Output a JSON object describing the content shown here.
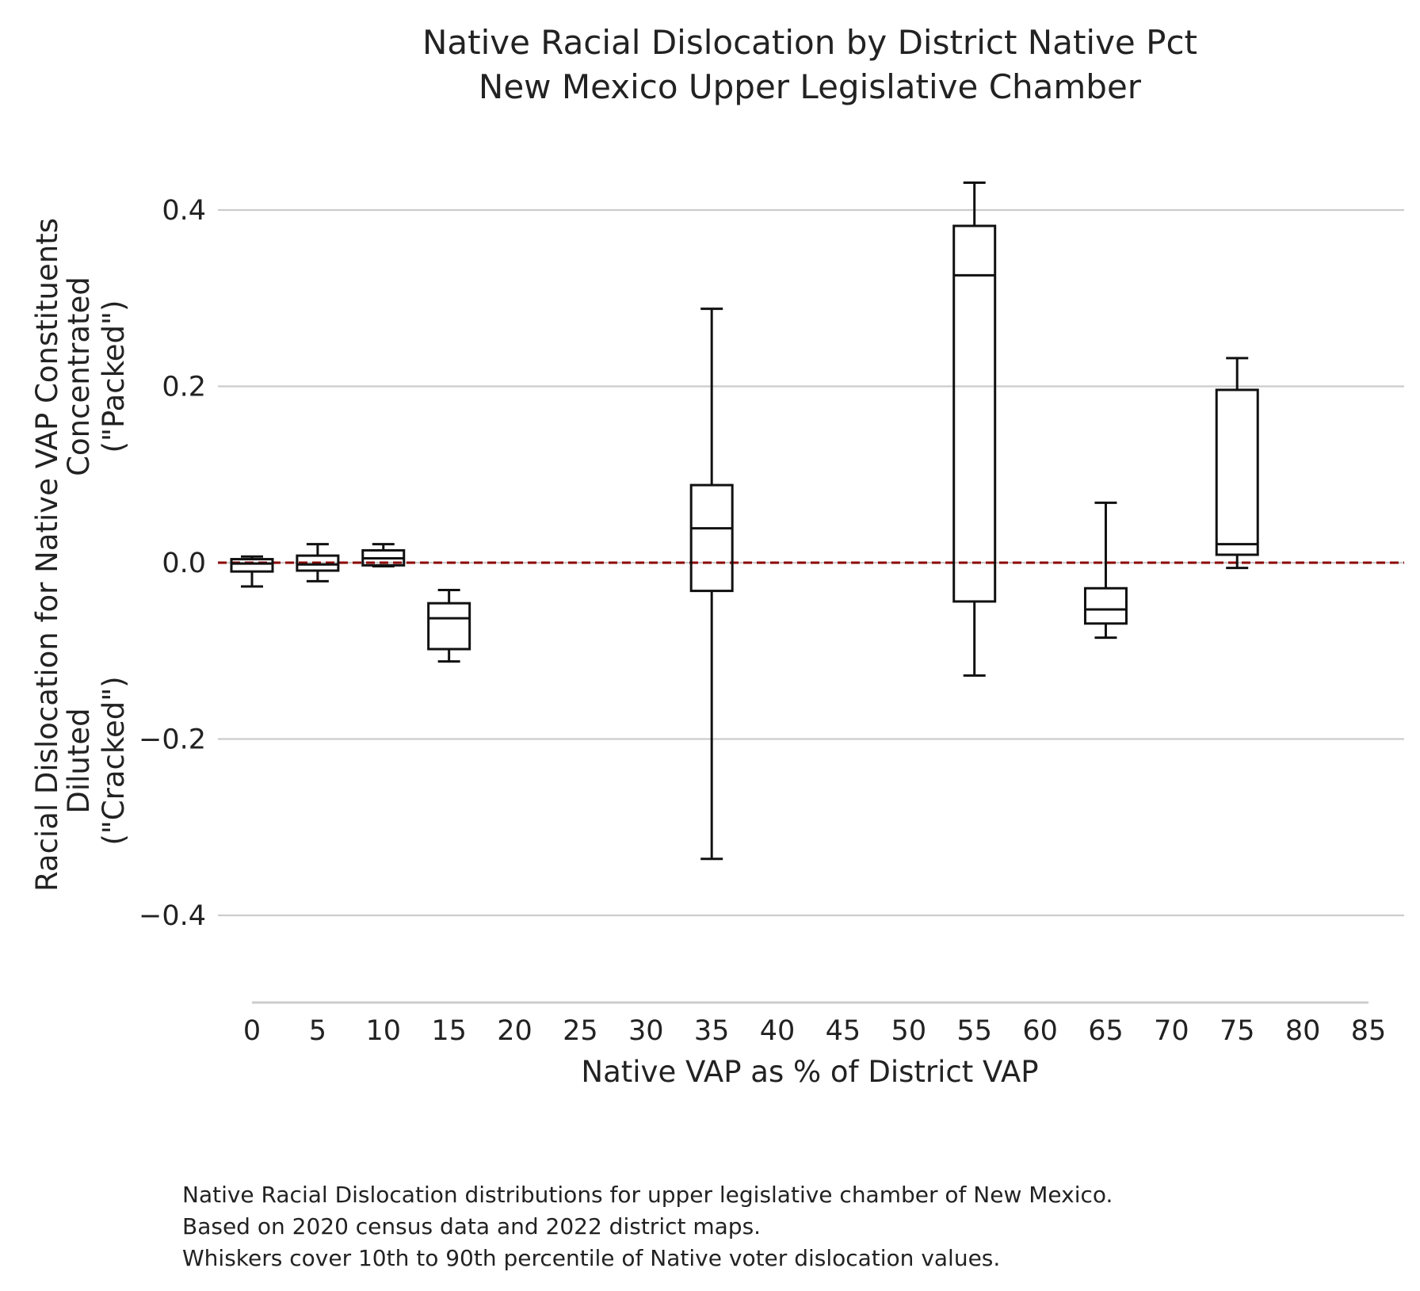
{
  "chart_data": {
    "type": "box",
    "title": [
      "Native Racial Dislocation by District Native Pct",
      "New Mexico Upper Legislative Chamber"
    ],
    "xlabel": "Native VAP as % of District VAP",
    "ylabel": [
      "Racial Dislocation for Native VAP Constituents",
      "Concentrated",
      "(\"Packed\")",
      "Diluted",
      "(\"Cracked\")"
    ],
    "x_ticks": [
      "0",
      "5",
      "10",
      "15",
      "20",
      "25",
      "30",
      "35",
      "40",
      "45",
      "50",
      "55",
      "60",
      "65",
      "70",
      "75",
      "80",
      "85"
    ],
    "y_ticks": [
      "0.4",
      "0.2",
      "0.0",
      "−0.2",
      "−0.4"
    ],
    "y_tick_values": [
      0.4,
      0.2,
      0.0,
      -0.2,
      -0.4
    ],
    "xlim": [
      0,
      85
    ],
    "ylim": [
      -0.5,
      0.45
    ],
    "grid": "horizontal",
    "reference_line": {
      "y": 0.0,
      "color": "#8b0000",
      "style": "dashed"
    },
    "boxes": [
      {
        "x": 0,
        "whisker_low": -0.027,
        "q1": -0.01,
        "median": -0.001,
        "q3": 0.004,
        "whisker_high": 0.007
      },
      {
        "x": 5,
        "whisker_low": -0.021,
        "q1": -0.009,
        "median": -0.002,
        "q3": 0.008,
        "whisker_high": 0.021
      },
      {
        "x": 10,
        "whisker_low": -0.004,
        "q1": -0.003,
        "median": 0.005,
        "q3": 0.014,
        "whisker_high": 0.021
      },
      {
        "x": 15,
        "whisker_low": -0.112,
        "q1": -0.098,
        "median": -0.063,
        "q3": -0.046,
        "whisker_high": -0.031
      },
      {
        "x": 35,
        "whisker_low": -0.336,
        "q1": -0.032,
        "median": 0.039,
        "q3": 0.088,
        "whisker_high": 0.288
      },
      {
        "x": 55,
        "whisker_low": -0.128,
        "q1": -0.044,
        "median": 0.326,
        "q3": 0.382,
        "whisker_high": 0.431
      },
      {
        "x": 65,
        "whisker_low": -0.085,
        "q1": -0.069,
        "median": -0.053,
        "q3": -0.029,
        "whisker_high": 0.068
      },
      {
        "x": 75,
        "whisker_low": -0.006,
        "q1": 0.009,
        "median": 0.021,
        "q3": 0.196,
        "whisker_high": 0.232
      }
    ],
    "colors": {
      "box": "#111111",
      "grid": "#cccccc",
      "reference": "#8b0000",
      "axis": "#cccccc"
    }
  },
  "caption": [
    "Native Racial Dislocation distributions for upper legislative chamber of New Mexico.",
    "Based on 2020 census data and 2022 district maps.",
    "Whiskers cover 10th to 90th percentile of Native voter dislocation values."
  ]
}
